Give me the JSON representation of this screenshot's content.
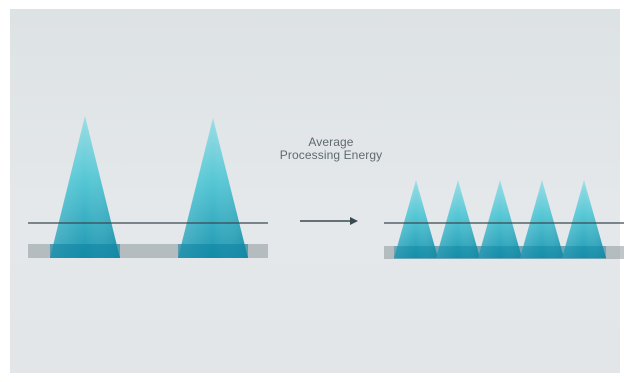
{
  "caption": {
    "line1": "Average",
    "line2": "Processing Energy"
  },
  "colors": {
    "background": "#e0e4e6",
    "peak_light": "#7fd6e0",
    "peak_mid": "#38bccd",
    "peak_dark": "#0e8aa6",
    "threshold_line": "#3a4a52",
    "base_bar": "#8d979c",
    "arrow": "#3a4a52"
  },
  "diagram": {
    "left_panel": {
      "peak_count": 2,
      "description_level": "high"
    },
    "right_panel": {
      "peak_count": 5,
      "description_level": "averaged"
    },
    "arrow_icon": "right-arrow-icon"
  }
}
